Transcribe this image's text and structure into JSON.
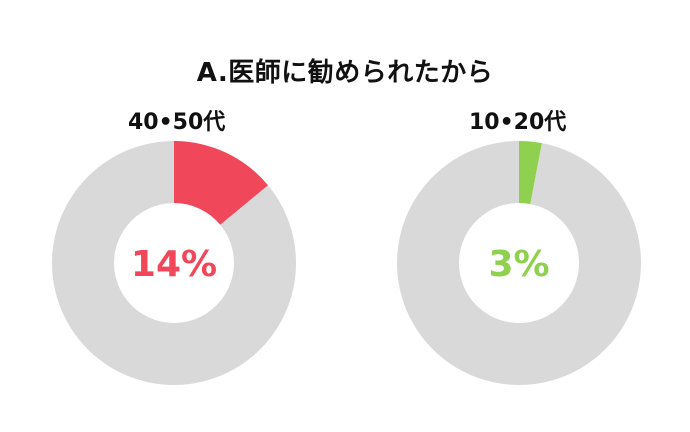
{
  "title": "A.医師に勧められたから",
  "colors": {
    "track": "#d9d9d9",
    "red": "#f0485a",
    "green": "#8fd14f"
  },
  "chart_data": [
    {
      "type": "pie",
      "subtype": "donut",
      "group_label": "40•50代",
      "value": 14,
      "center_label": "14%",
      "highlight_color": "#f0485a",
      "rest_color": "#d9d9d9"
    },
    {
      "type": "pie",
      "subtype": "donut",
      "group_label": "10•20代",
      "value": 3,
      "center_label": "3%",
      "highlight_color": "#8fd14f",
      "rest_color": "#d9d9d9"
    }
  ]
}
